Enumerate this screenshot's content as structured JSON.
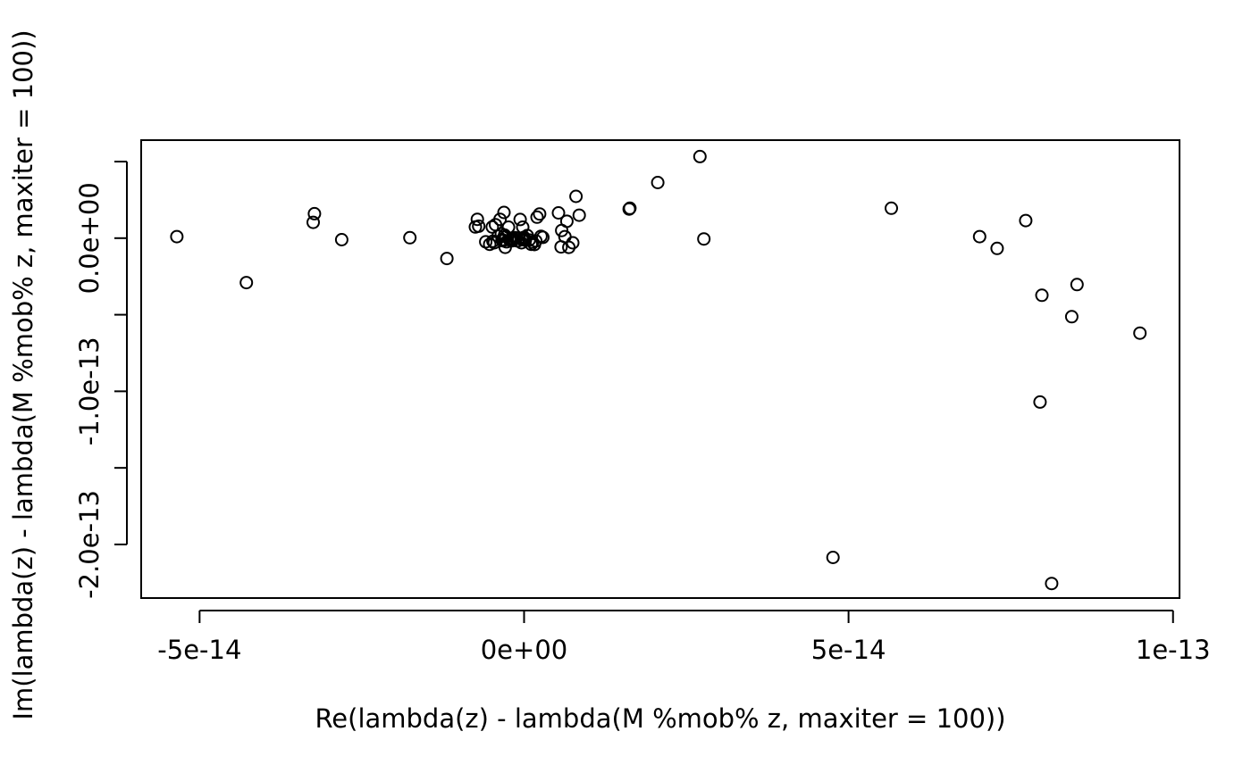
{
  "chart_data": {
    "type": "scatter",
    "title": "",
    "xlabel": "Re(lambda(z) - lambda(M %mob% z, maxiter = 100))",
    "ylabel": "Im(lambda(z) - lambda(M %mob% z, maxiter = 100))",
    "xlim": [
      -5.9e-14,
      1.01e-13
    ],
    "ylim": [
      -2.35e-13,
      6.4e-14
    ],
    "x_ticks": [
      {
        "value": -5e-14,
        "label": "-5e-14"
      },
      {
        "value": 0,
        "label": "0e+00"
      },
      {
        "value": 5e-14,
        "label": "5e-14"
      },
      {
        "value": 1e-13,
        "label": "1e-13"
      }
    ],
    "y_ticks": [
      {
        "value": 5e-14,
        "label": ""
      },
      {
        "value": 0,
        "label": "0.0e+00"
      },
      {
        "value": -5e-14,
        "label": ""
      },
      {
        "value": -1e-13,
        "label": "-1.0e-13"
      },
      {
        "value": -1.5e-13,
        "label": ""
      },
      {
        "value": -2e-13,
        "label": "-2.0e-13"
      }
    ],
    "grid": false,
    "legend": "none",
    "series": [
      {
        "marker": "open-circle",
        "color": "#000000",
        "x": [
          -5.35e-14,
          -4.28e-14,
          -3.23e-14,
          -3.25e-14,
          -2.81e-14,
          -1.76e-14,
          -1.19e-14,
          -7.5e-15,
          -7.2e-15,
          -7e-15,
          -5.9e-15,
          -5.3e-15,
          -4.9e-15,
          -4.8e-15,
          -4.6e-15,
          -4.4e-15,
          -4e-15,
          -3.7e-15,
          -3.5e-15,
          -3.4e-15,
          -3.3e-15,
          -3.1e-15,
          -2.9e-15,
          -2.7e-15,
          -2.4e-15,
          -2.2e-15,
          -2e-15,
          -1.8e-15,
          -1.6e-15,
          -1.4e-15,
          -1.2e-15,
          -1e-15,
          -8e-16,
          -6e-16,
          -4e-16,
          -2e-16,
          0.0,
          2e-16,
          5e-16,
          8e-16,
          1.1e-15,
          1.3e-15,
          1.6e-15,
          1.8e-15,
          2e-15,
          2.4e-15,
          2.6e-15,
          2.9e-15,
          -2.8e-15,
          -3e-16,
          -1e-16,
          -3e-15,
          5.3e-15,
          5.7e-15,
          5.8e-15,
          6.3e-15,
          6.6e-15,
          6.9e-15,
          7.5e-15,
          8e-15,
          8.5e-15,
          1.62e-14,
          1.63e-14,
          2.06e-14,
          2.71e-14,
          2.77e-14,
          4.76e-14,
          5.66e-14,
          7.02e-14,
          7.29e-14,
          7.73e-14,
          7.98e-14,
          8.44e-14,
          8.52e-14,
          9.49e-14,
          7.95e-14,
          8.13e-14
        ],
        "y": [
          1e-15,
          -2.9e-14,
          1.6e-14,
          1.03e-14,
          -1e-15,
          3e-16,
          -1.33e-14,
          7.3e-15,
          1.23e-14,
          7.8e-15,
          -2.4e-15,
          -4e-15,
          7.3e-15,
          -2e-15,
          -3e-15,
          8.8e-15,
          1.3e-15,
          1.23e-14,
          2.8e-15,
          -1e-15,
          -1.7e-15,
          1.68e-14,
          -6e-15,
          -2.4e-15,
          7.2e-15,
          -1.2e-15,
          -5e-16,
          -1.7e-15,
          -5e-16,
          3e-16,
          0.0,
          -1.8e-15,
          -2e-16,
          1.22e-14,
          -3e-15,
          7.2e-15,
          5e-16,
          -1.4e-15,
          1.7e-15,
          -1.2e-15,
          -4e-15,
          -2.6e-15,
          -4.2e-15,
          -1.8e-15,
          1.37e-14,
          1.58e-14,
          1.2e-15,
          5e-16,
          1e-15,
          -1e-15,
          -4e-16,
          2e-15,
          1.65e-14,
          -5.7e-15,
          5e-15,
          1e-15,
          1.1e-14,
          -6e-15,
          -3e-15,
          2.73e-14,
          1.5e-14,
          1.9e-14,
          1.95e-14,
          3.63e-14,
          5.33e-14,
          -5e-16,
          -2.085e-13,
          1.95e-14,
          1e-15,
          -6.7e-15,
          1.15e-14,
          -3.73e-14,
          -5.13e-14,
          -3.03e-14,
          -6.2e-14,
          -1.07e-13,
          -2.255e-13
        ]
      }
    ]
  }
}
